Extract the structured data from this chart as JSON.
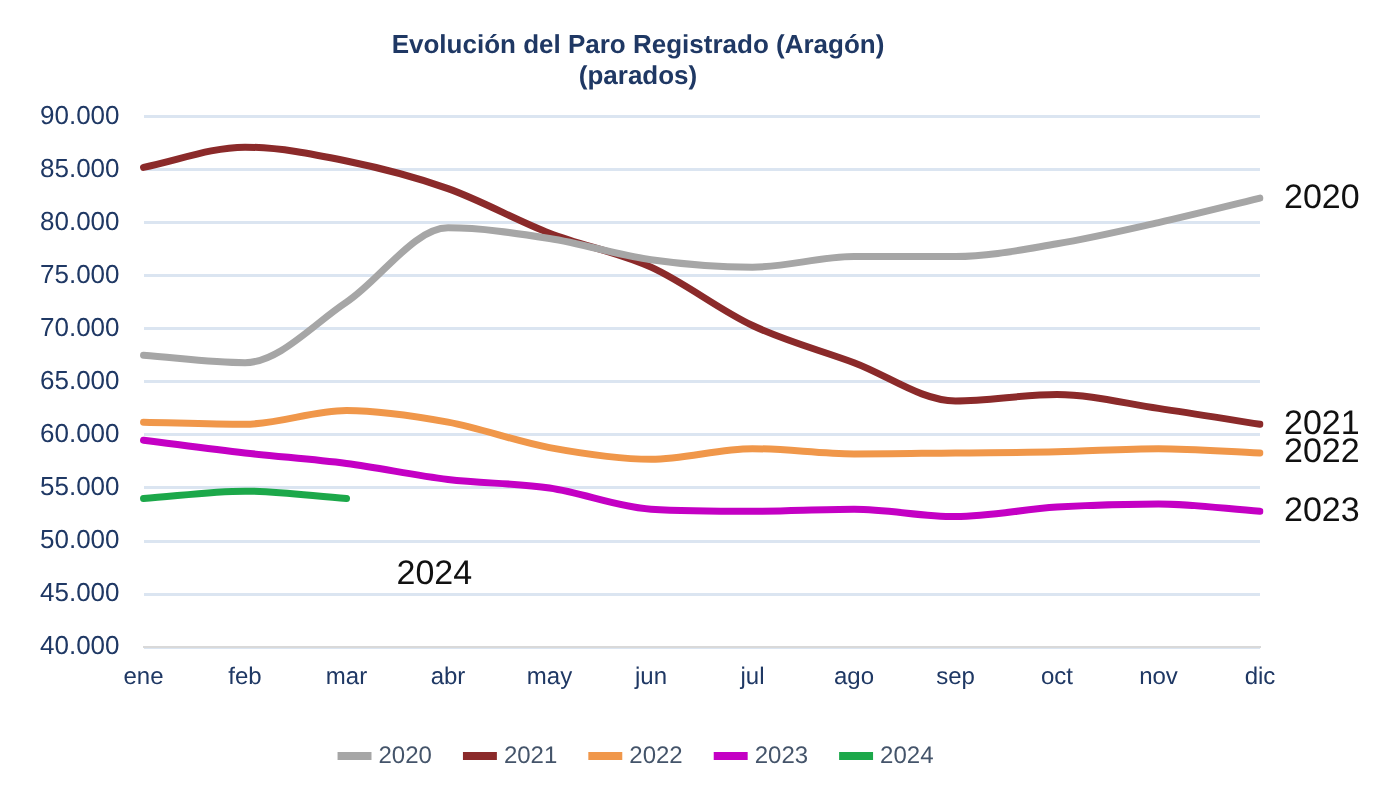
{
  "chart_data": {
    "type": "line",
    "title": "Evolución del Paro Registrado (Aragón)",
    "subtitle": "(parados)",
    "categories": [
      "ene",
      "feb",
      "mar",
      "abr",
      "may",
      "jun",
      "jul",
      "ago",
      "sep",
      "oct",
      "nov",
      "dic"
    ],
    "series": [
      {
        "name": "2020",
        "color": "#a6a6a6",
        "values": [
          67500,
          66800,
          72500,
          79500,
          78500,
          76500,
          75800,
          76800,
          76800,
          78000,
          80000,
          82300
        ]
      },
      {
        "name": "2021",
        "color": "#8b2a2a",
        "values": [
          85200,
          87100,
          85800,
          83200,
          79000,
          75800,
          70300,
          66800,
          63200,
          63800,
          62500,
          61000
        ]
      },
      {
        "name": "2022",
        "color": "#f0974a",
        "values": [
          61200,
          61000,
          62300,
          61200,
          58800,
          57700,
          58700,
          58200,
          58300,
          58400,
          58700,
          58300
        ]
      },
      {
        "name": "2023",
        "color": "#c400c4",
        "values": [
          59500,
          58300,
          57300,
          55800,
          55000,
          53000,
          52800,
          53000,
          52300,
          53200,
          53500,
          52800
        ]
      },
      {
        "name": "2024",
        "color": "#1ca84a",
        "values": [
          54000,
          54700,
          54000,
          null,
          null,
          null,
          null,
          null,
          null,
          null,
          null,
          null
        ]
      }
    ],
    "ylim": [
      40000,
      90000
    ],
    "yticks": [
      {
        "value": 40000,
        "label": "40.000"
      },
      {
        "value": 45000,
        "label": "45.000"
      },
      {
        "value": 50000,
        "label": "50.000"
      },
      {
        "value": 55000,
        "label": "55.000"
      },
      {
        "value": 60000,
        "label": "60.000"
      },
      {
        "value": 65000,
        "label": "65.000"
      },
      {
        "value": 70000,
        "label": "70.000"
      },
      {
        "value": 75000,
        "label": "75.000"
      },
      {
        "value": 80000,
        "label": "80.000"
      },
      {
        "value": 85000,
        "label": "85.000"
      },
      {
        "value": 90000,
        "label": "90.000"
      }
    ],
    "grid": "y",
    "legend": "bottom",
    "marker": "none",
    "line_style": "solid"
  }
}
